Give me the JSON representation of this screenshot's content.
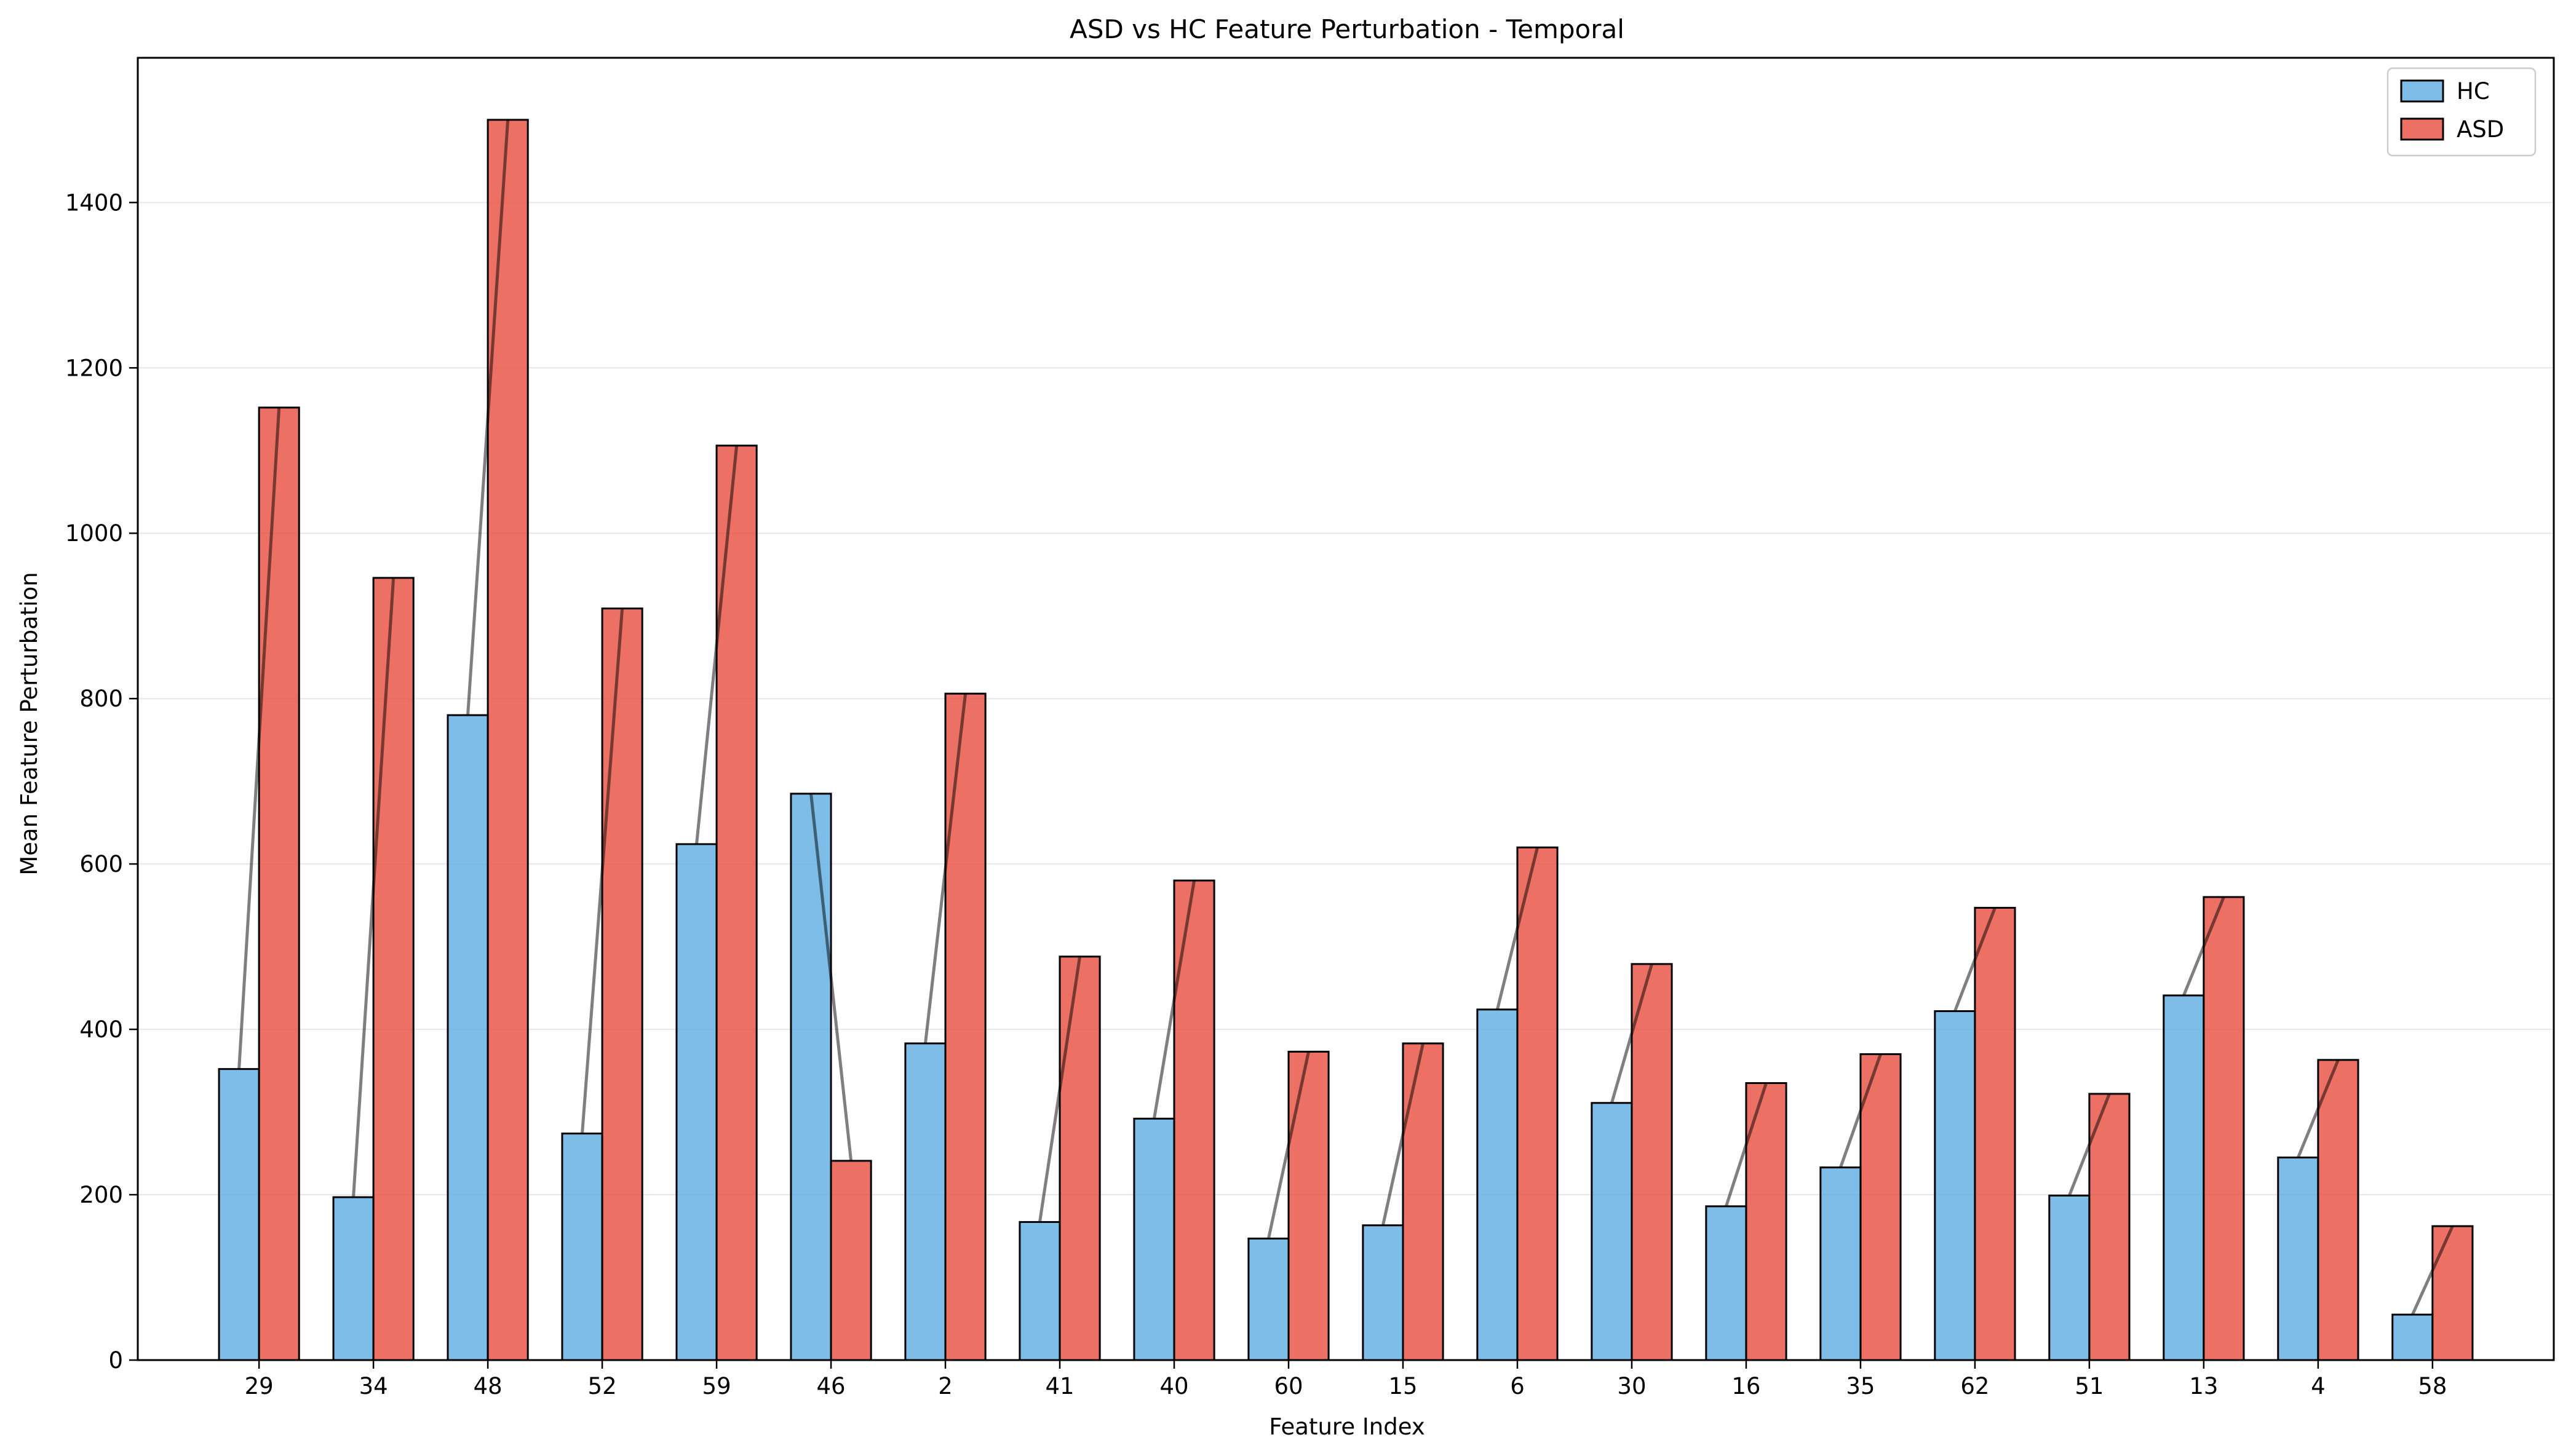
{
  "chart_data": {
    "type": "bar",
    "title": "ASD vs HC Feature Perturbation - Temporal",
    "xlabel": "Feature Index",
    "ylabel": "Mean Feature Perturbation",
    "categories": [
      "29",
      "34",
      "48",
      "52",
      "59",
      "46",
      "2",
      "41",
      "40",
      "60",
      "15",
      "6",
      "30",
      "16",
      "35",
      "62",
      "51",
      "13",
      "4",
      "58"
    ],
    "series": [
      {
        "name": "HC",
        "color": "#5DADE2",
        "values": [
          352,
          197,
          780,
          274,
          624,
          685,
          383,
          167,
          292,
          147,
          163,
          424,
          311,
          186,
          233,
          422,
          199,
          441,
          245,
          55
        ]
      },
      {
        "name": "ASD",
        "color": "#E74C3C",
        "values": [
          1152,
          946,
          1500,
          909,
          1106,
          241,
          806,
          488,
          580,
          373,
          383,
          620,
          479,
          335,
          370,
          547,
          322,
          560,
          363,
          162
        ]
      }
    ],
    "connector_lines": true,
    "yticks": [
      0,
      200,
      400,
      600,
      800,
      1000,
      1200,
      1400
    ],
    "ylim": [
      0,
      1575
    ],
    "grid": "horizontal",
    "legend_position": "top-right"
  }
}
